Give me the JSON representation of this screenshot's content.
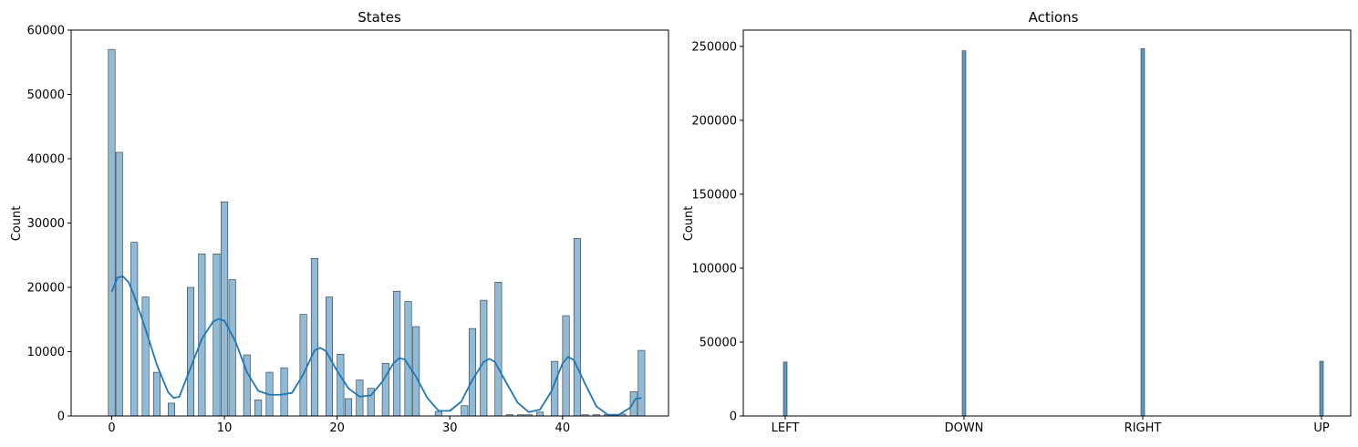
{
  "chart_data": [
    {
      "type": "bar",
      "title": "States",
      "xlabel": "",
      "ylabel": "Count",
      "xlim": [
        -3.6,
        49.4
      ],
      "ylim": [
        0,
        60000
      ],
      "xticks": [
        0,
        10,
        20,
        30,
        40
      ],
      "yticks": [
        0,
        10000,
        20000,
        30000,
        40000,
        50000,
        60000
      ],
      "bar_color": "#1f77b4",
      "bar_alpha": 0.5,
      "kde_color": "#1f77b4",
      "grid": false,
      "bins": [
        {
          "x": 0,
          "value": 57000
        },
        {
          "x": 0.67,
          "value": 41000
        },
        {
          "x": 2,
          "value": 27000
        },
        {
          "x": 3,
          "value": 18500
        },
        {
          "x": 4,
          "value": 6800
        },
        {
          "x": 5.3,
          "value": 2000
        },
        {
          "x": 7,
          "value": 20000
        },
        {
          "x": 8,
          "value": 25200
        },
        {
          "x": 9.3,
          "value": 25200
        },
        {
          "x": 10,
          "value": 33300
        },
        {
          "x": 10.7,
          "value": 21200
        },
        {
          "x": 12,
          "value": 9500
        },
        {
          "x": 13,
          "value": 2500
        },
        {
          "x": 14,
          "value": 6800
        },
        {
          "x": 15.3,
          "value": 7500
        },
        {
          "x": 17,
          "value": 15800
        },
        {
          "x": 18,
          "value": 24500
        },
        {
          "x": 19.3,
          "value": 18500
        },
        {
          "x": 20.3,
          "value": 9600
        },
        {
          "x": 21,
          "value": 2700
        },
        {
          "x": 22,
          "value": 5600
        },
        {
          "x": 23,
          "value": 4300
        },
        {
          "x": 24.3,
          "value": 8200
        },
        {
          "x": 25.3,
          "value": 19400
        },
        {
          "x": 26.3,
          "value": 17800
        },
        {
          "x": 27,
          "value": 13900
        },
        {
          "x": 29,
          "value": 700
        },
        {
          "x": 31.3,
          "value": 1600
        },
        {
          "x": 32,
          "value": 13600
        },
        {
          "x": 33,
          "value": 18000
        },
        {
          "x": 34.3,
          "value": 20800
        },
        {
          "x": 35.3,
          "value": 200
        },
        {
          "x": 36.3,
          "value": 200
        },
        {
          "x": 37,
          "value": 200
        },
        {
          "x": 38,
          "value": 600
        },
        {
          "x": 39.3,
          "value": 8500
        },
        {
          "x": 40.3,
          "value": 15600
        },
        {
          "x": 41.3,
          "value": 27600
        },
        {
          "x": 42,
          "value": 200
        },
        {
          "x": 43,
          "value": 200
        },
        {
          "x": 44,
          "value": 200
        },
        {
          "x": 45.3,
          "value": 300
        },
        {
          "x": 46.3,
          "value": 3800
        },
        {
          "x": 47,
          "value": 10200
        }
      ],
      "kde": {
        "x": [
          0,
          0.5,
          1,
          1.5,
          2,
          3,
          4,
          5,
          5.5,
          6,
          7,
          8,
          9,
          9.5,
          10,
          11,
          12,
          13,
          14,
          15,
          16,
          17,
          18,
          18.5,
          19,
          20,
          21,
          22,
          23,
          24,
          25,
          25.5,
          26,
          27,
          28,
          29,
          30,
          31,
          32,
          33,
          33.5,
          34,
          35,
          36,
          37,
          38,
          39,
          40,
          40.5,
          41,
          42,
          43,
          44,
          45,
          46,
          46.5,
          47
        ],
        "y": [
          19300,
          21500,
          21700,
          20800,
          18700,
          13500,
          8000,
          3700,
          2800,
          3000,
          7500,
          12000,
          14700,
          15100,
          14800,
          11500,
          6800,
          3900,
          3300,
          3300,
          3600,
          6500,
          10200,
          10600,
          10100,
          7000,
          4300,
          3000,
          3200,
          5300,
          8200,
          9000,
          8800,
          6100,
          2800,
          800,
          800,
          2200,
          5600,
          8400,
          8900,
          8400,
          5200,
          2100,
          600,
          1000,
          3800,
          8200,
          9200,
          8700,
          5000,
          1500,
          200,
          200,
          1300,
          2700,
          2800
        ]
      }
    },
    {
      "type": "bar",
      "title": "Actions",
      "xlabel": "",
      "ylabel": "Count",
      "categories": [
        "LEFT",
        "DOWN",
        "RIGHT",
        "UP"
      ],
      "values": [
        36500,
        247000,
        248500,
        37000
      ],
      "ylim": [
        0,
        261000
      ],
      "yticks": [
        0,
        50000,
        100000,
        150000,
        200000,
        250000
      ],
      "bar_color": "#1f77b4",
      "bar_alpha": 0.75,
      "grid": false
    }
  ]
}
